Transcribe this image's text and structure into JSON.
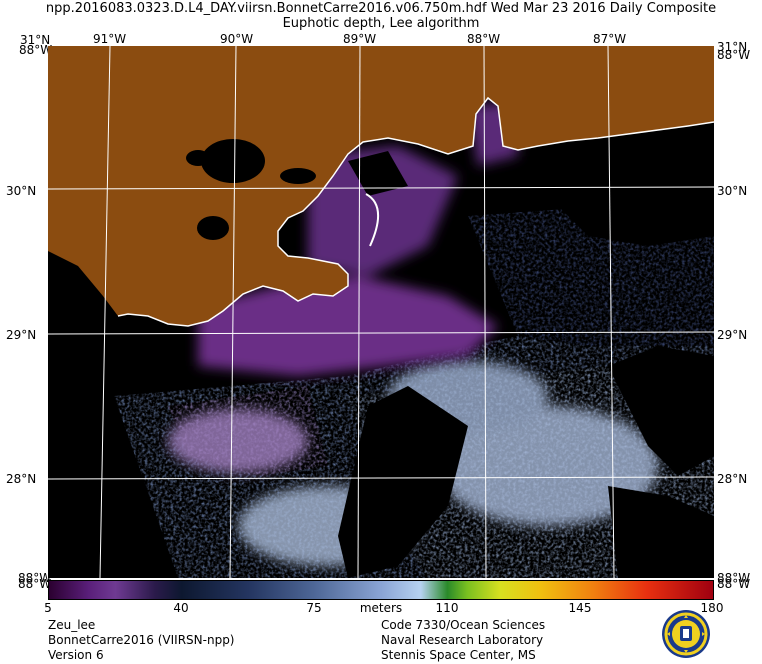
{
  "header": {
    "title_line1": "npp.2016083.0323.D.L4_DAY.viirsn.BonnetCarre2016.v06.750m.hdf   Wed Mar 23 2016 Daily Composite",
    "title_line2": "Euphotic depth, Lee algorithm"
  },
  "map": {
    "lon_labels": [
      "91°W",
      "90°W",
      "89°W",
      "88°W",
      "87°W"
    ],
    "lat_labels": [
      "30°N",
      "29°N",
      "28°N"
    ],
    "corner_top_left_lat": "31°N",
    "corner_top_left_lon": "88°W",
    "corner_top_right_lat": "31°N",
    "corner_top_right_lon": "88°W",
    "corner_bottom_left_lat": "88°W",
    "corner_bottom_left_lon": "88°W",
    "corner_bottom_right_lat": "88°W",
    "corner_bottom_right_lon": "88°W",
    "land_color": "#8b4c10",
    "nodata_color": "#000000",
    "grid_color": "#ffffff"
  },
  "colorbar": {
    "ticks": [
      "5",
      "40",
      "75",
      "110",
      "145",
      "180"
    ],
    "unit_label": "meters"
  },
  "footer": {
    "left_line1": "Zeu_lee",
    "left_line2": "BonnetCarre2016 (VIIRSN-npp)",
    "left_line3": "Version 6",
    "right_line1": "Code 7330/Ocean Sciences",
    "right_line2": "Naval Research Laboratory",
    "right_line3": "Stennis Space Center, MS"
  }
}
